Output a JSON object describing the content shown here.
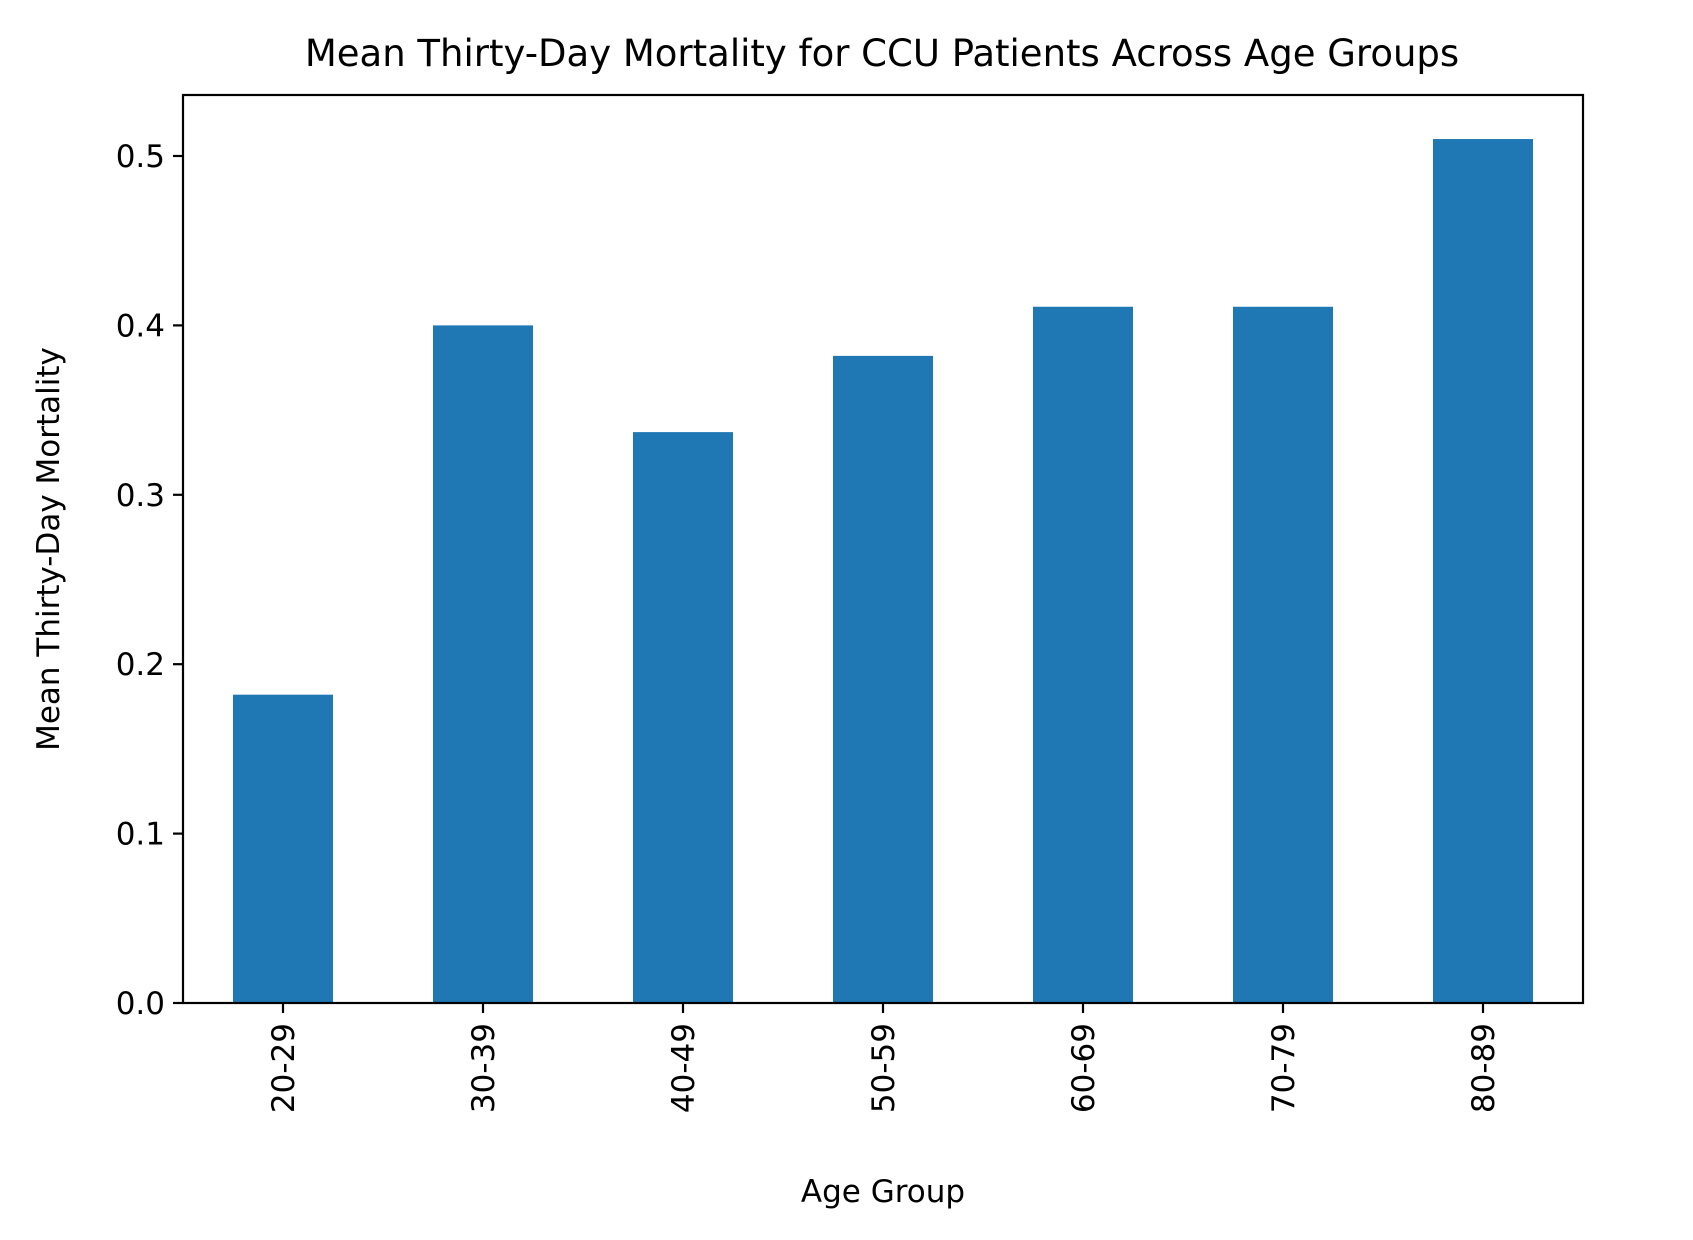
{
  "chart_data": {
    "type": "bar",
    "title": "Mean Thirty-Day Mortality for CCU Patients Across Age Groups",
    "xlabel": "Age Group",
    "ylabel": "Mean Thirty-Day Mortality",
    "categories": [
      "20-29",
      "30-39",
      "40-49",
      "50-59",
      "60-69",
      "70-79",
      "80-89"
    ],
    "values": [
      0.182,
      0.4,
      0.337,
      0.382,
      0.411,
      0.411,
      0.51
    ],
    "ylim": [
      0,
      0.536
    ],
    "yticks": [
      "0.0",
      "0.1",
      "0.2",
      "0.3",
      "0.4",
      "0.5"
    ],
    "grid": false,
    "legend": "none",
    "bar_color": "#1f77b4"
  }
}
